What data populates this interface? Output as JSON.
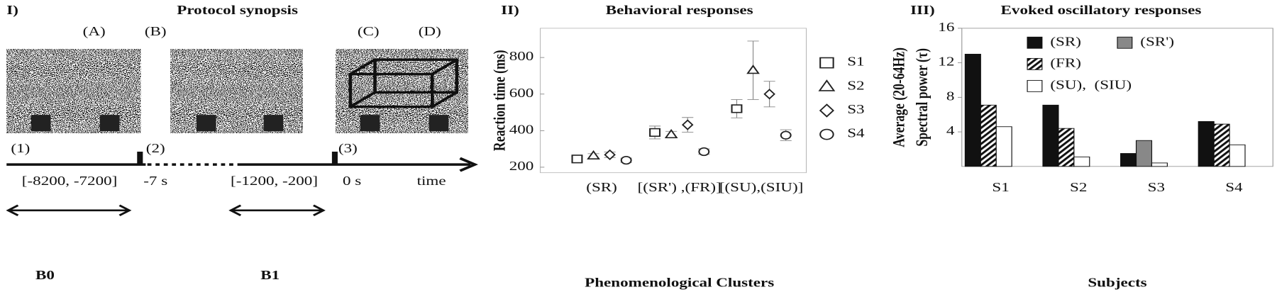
{
  "panel_1": {
    "label": "I)",
    "title": "Protocol synopsis",
    "stimuli": [
      "(A)",
      "(B)",
      "(C)",
      "(D)"
    ],
    "events": [
      "(1)",
      "(2)",
      "(3)"
    ],
    "times": [
      "[-8200, -7200]",
      "-7 s",
      "[-1200, -200]",
      "0 s",
      "time"
    ],
    "baselines": [
      "B0",
      "B1"
    ]
  },
  "chart_data": [
    {
      "type": "scatter",
      "label": "II)",
      "title": "Behavioral responses",
      "x_label": "Phenomenological Clusters",
      "y_label": "Reaction time (ms)",
      "categories": [
        "(SR)",
        "[(SR') ,(FR)]",
        "[(SU),(SIU)]"
      ],
      "ylim": [
        170,
        960
      ],
      "yticks": [
        200,
        400,
        600,
        800
      ],
      "series": [
        {
          "name": "S1",
          "marker": "square",
          "color": "#222222",
          "values": [
            245,
            390,
            520
          ],
          "errors": [
            15,
            35,
            50
          ]
        },
        {
          "name": "S2",
          "marker": "triangle",
          "color": "#222222",
          "values": [
            262,
            378,
            730
          ],
          "errors": [
            12,
            18,
            160
          ]
        },
        {
          "name": "S3",
          "marker": "diamond",
          "color": "#222222",
          "values": [
            268,
            432,
            600
          ],
          "errors": [
            15,
            40,
            70
          ]
        },
        {
          "name": "S4",
          "marker": "circle",
          "color": "#222222",
          "values": [
            238,
            285,
            375
          ],
          "errors": [
            12,
            15,
            30
          ]
        }
      ]
    },
    {
      "type": "bar",
      "label": "III)",
      "title": "Evoked oscillatory responses",
      "x_label": "Subjects",
      "y_label": [
        "Average (20-64Hz)",
        "Spectral power (τ)"
      ],
      "categories": [
        "S1",
        "S2",
        "S3",
        "S4"
      ],
      "ylim": [
        0,
        16
      ],
      "yticks": [
        4,
        8,
        12,
        16
      ],
      "series": [
        {
          "name": "(SR)",
          "color": "#111111",
          "hatch": false,
          "values": [
            13,
            7.1,
            1.5,
            5.2
          ]
        },
        {
          "name": "(SR')",
          "color": "#888888",
          "hatch": false,
          "values": [
            null,
            null,
            3.0,
            null
          ]
        },
        {
          "name": "(FR)",
          "color": "#111111",
          "hatch": true,
          "values": [
            7.1,
            4.4,
            null,
            4.9
          ]
        },
        {
          "name": "(SU),  (SIU)",
          "color": "#ffffff",
          "hatch": false,
          "values": [
            4.6,
            1.1,
            0.4,
            2.5
          ]
        }
      ]
    }
  ]
}
